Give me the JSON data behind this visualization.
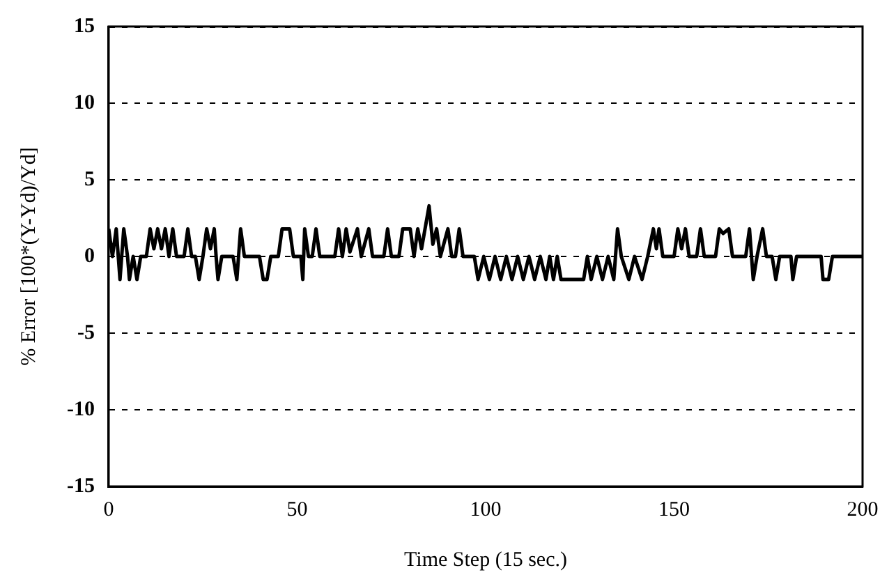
{
  "chart_data": {
    "type": "line",
    "xlabel": "Time Step (15 sec.)",
    "ylabel": "% Error [100*(Y-Yd)/Yd]",
    "xlim": [
      0,
      200
    ],
    "xticks": [
      0,
      50,
      100,
      150,
      200
    ],
    "ylim": [
      -15,
      15
    ],
    "yticks": [
      -15,
      -10,
      -5,
      0,
      5,
      10,
      15
    ],
    "grid": "y",
    "legend": false,
    "marker": "none",
    "line_style": "solid",
    "series": [
      {
        "color": "#000000",
        "x": [
          0,
          1,
          2,
          3,
          4,
          5,
          5.5,
          6.5,
          7.5,
          8.5,
          10,
          11,
          12,
          13,
          14,
          15,
          16,
          17,
          18,
          20,
          21,
          22,
          23,
          24,
          25,
          26,
          27,
          28,
          28.5,
          29,
          30,
          33,
          34,
          35,
          36,
          40,
          41,
          42,
          43,
          45,
          46,
          48,
          49,
          51,
          51.5,
          52,
          53,
          54,
          55,
          56,
          60,
          61,
          62,
          63,
          64,
          66,
          67,
          69,
          70,
          73,
          74,
          75,
          77,
          78,
          80,
          81,
          82,
          83,
          85,
          86,
          87,
          88,
          90,
          91,
          92,
          93,
          94,
          97,
          98,
          99.5,
          101,
          102.5,
          104,
          105.5,
          107,
          108.5,
          110,
          111.5,
          113,
          114.5,
          116,
          117,
          118,
          119,
          120,
          126,
          127,
          128,
          129.5,
          131,
          132.5,
          134,
          135,
          136,
          138,
          139.5,
          141.5,
          143,
          144.5,
          145.3,
          146,
          147,
          150,
          151,
          152,
          153,
          154,
          156,
          157,
          158,
          161,
          162,
          163,
          164.5,
          165.5,
          169,
          170,
          171,
          172,
          173.5,
          174.5,
          176,
          177,
          178,
          181,
          181.5,
          182.5,
          189,
          189.5,
          191,
          192,
          200
        ],
        "values": [
          1.8,
          0,
          1.8,
          -1.5,
          1.8,
          0,
          -1.5,
          0,
          -1.5,
          0,
          0,
          1.8,
          0.5,
          1.8,
          0.5,
          1.8,
          0,
          1.8,
          0,
          0,
          1.8,
          0,
          0,
          -1.5,
          0,
          1.8,
          0.5,
          1.8,
          0,
          -1.5,
          0,
          0,
          -1.5,
          1.8,
          0,
          0,
          -1.5,
          -1.5,
          0,
          0,
          1.8,
          1.8,
          0,
          0,
          -1.5,
          1.8,
          0,
          0,
          1.8,
          0,
          0,
          1.8,
          0,
          1.8,
          0.3,
          1.8,
          0,
          1.8,
          0,
          0,
          1.8,
          0,
          0,
          1.8,
          1.8,
          0,
          1.8,
          0.5,
          3.3,
          0.8,
          1.8,
          0,
          1.8,
          0,
          0,
          1.8,
          0,
          0,
          -1.5,
          0,
          -1.5,
          0,
          -1.5,
          0,
          -1.5,
          0,
          -1.5,
          0,
          -1.5,
          0,
          -1.5,
          0,
          -1.5,
          0,
          -1.5,
          -1.5,
          0,
          -1.5,
          0,
          -1.5,
          0,
          -1.5,
          1.8,
          0,
          -1.5,
          0,
          -1.5,
          0,
          1.8,
          0.5,
          1.8,
          0,
          0,
          1.8,
          0.5,
          1.8,
          0,
          0,
          1.8,
          0,
          0,
          1.8,
          1.5,
          1.8,
          0,
          0,
          1.8,
          -1.5,
          0,
          1.8,
          0,
          0,
          -1.5,
          0,
          0,
          -1.5,
          0,
          0,
          -1.5,
          -1.5,
          0,
          0
        ]
      }
    ]
  }
}
